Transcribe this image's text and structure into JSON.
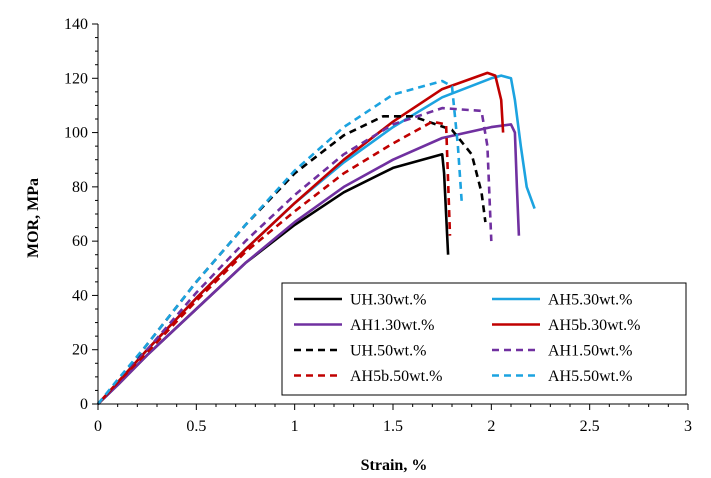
{
  "chart_data": {
    "type": "line",
    "title": "",
    "xlabel": "Strain, %",
    "ylabel": "MOR, MPa",
    "xlim": [
      0,
      3
    ],
    "ylim": [
      0,
      140
    ],
    "xticks": [
      0,
      0.5,
      1,
      1.5,
      2,
      2.5,
      3
    ],
    "yticks": [
      0,
      20,
      40,
      60,
      80,
      100,
      120,
      140
    ],
    "xtick_labels": [
      "0",
      "0.5",
      "1",
      "1.5",
      "2",
      "2.5",
      "3"
    ],
    "ytick_labels": [
      "0",
      "20",
      "40",
      "60",
      "80",
      "100",
      "120",
      "140"
    ],
    "grid": false,
    "legend_position": "bottom-right",
    "series": [
      {
        "name": "UH.30wt.%",
        "color": "#000000",
        "dash": "solid",
        "x": [
          0,
          0.1,
          0.25,
          0.5,
          0.75,
          1.0,
          1.25,
          1.5,
          1.7,
          1.75,
          1.76,
          1.77,
          1.78
        ],
        "y": [
          0,
          7,
          18,
          35,
          52,
          66,
          78,
          87,
          91,
          92,
          85,
          70,
          55
        ]
      },
      {
        "name": "AH5.30wt.%",
        "color": "#1ca3e0",
        "dash": "solid",
        "x": [
          0,
          0.1,
          0.25,
          0.5,
          0.75,
          1.0,
          1.25,
          1.5,
          1.75,
          2.0,
          2.05,
          2.1,
          2.12,
          2.15,
          2.18,
          2.22
        ],
        "y": [
          0,
          8,
          20,
          39,
          57,
          74,
          89,
          102,
          113,
          120,
          121,
          120,
          112,
          95,
          80,
          72
        ]
      },
      {
        "name": "AH1.30wt.%",
        "color": "#7030a0",
        "dash": "solid",
        "x": [
          0,
          0.1,
          0.25,
          0.5,
          0.75,
          1.0,
          1.25,
          1.5,
          1.75,
          2.0,
          2.1,
          2.12,
          2.13,
          2.14
        ],
        "y": [
          0,
          7,
          18,
          35,
          52,
          67,
          80,
          90,
          98,
          102,
          103,
          100,
          80,
          62
        ]
      },
      {
        "name": "AH5b.30wt.%",
        "color": "#c00000",
        "dash": "solid",
        "x": [
          0,
          0.1,
          0.25,
          0.5,
          0.75,
          1.0,
          1.25,
          1.5,
          1.75,
          1.98,
          2.02,
          2.05,
          2.06
        ],
        "y": [
          0,
          8,
          20,
          39,
          57,
          74,
          90,
          104,
          116,
          122,
          121,
          112,
          100
        ]
      },
      {
        "name": "UH.50wt.%",
        "color": "#000000",
        "dash": "dashed",
        "x": [
          0,
          0.1,
          0.25,
          0.5,
          0.75,
          1.0,
          1.25,
          1.45,
          1.6,
          1.8,
          1.9,
          1.95,
          1.97
        ],
        "y": [
          0,
          8,
          22,
          45,
          66,
          85,
          99,
          106,
          106,
          101,
          92,
          78,
          67
        ]
      },
      {
        "name": "AH1.50wt.%",
        "color": "#7030a0",
        "dash": "dashed",
        "x": [
          0,
          0.1,
          0.25,
          0.5,
          0.75,
          1.0,
          1.25,
          1.5,
          1.75,
          1.95,
          1.98,
          2.0
        ],
        "y": [
          0,
          8,
          20,
          41,
          60,
          77,
          92,
          103,
          109,
          108,
          95,
          60
        ]
      },
      {
        "name": "AH5b.50wt.%",
        "color": "#c00000",
        "dash": "dashed",
        "x": [
          0,
          0.1,
          0.25,
          0.5,
          0.75,
          1.0,
          1.25,
          1.5,
          1.7,
          1.77,
          1.79
        ],
        "y": [
          0,
          8,
          19,
          38,
          56,
          71,
          85,
          96,
          104,
          103,
          62
        ]
      },
      {
        "name": "AH5.50wt.%",
        "color": "#1ca3e0",
        "dash": "dashed",
        "x": [
          0,
          0.1,
          0.25,
          0.5,
          0.75,
          1.0,
          1.25,
          1.5,
          1.75,
          1.8,
          1.83,
          1.85
        ],
        "y": [
          0,
          9,
          22,
          45,
          66,
          86,
          102,
          114,
          119,
          117,
          95,
          74
        ]
      }
    ],
    "legend_order": [
      "UH.30wt.%",
      "AH5.30wt.%",
      "AH1.30wt.%",
      "AH5b.30wt.%",
      "UH.50wt.%",
      "AH1.50wt.%",
      "AH5b.50wt.%",
      "AH5.50wt.%"
    ]
  }
}
